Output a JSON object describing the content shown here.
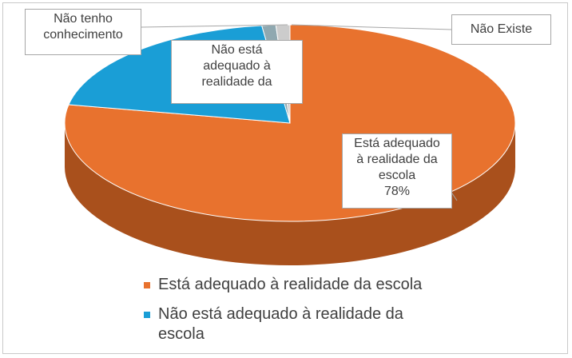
{
  "chart_data": {
    "type": "pie",
    "style": "3d",
    "slices": [
      {
        "name": "Está adequado à realidade da escola",
        "value": 78,
        "color": "#e8722e",
        "side_color": "#a9501c"
      },
      {
        "name": "Não está adequado à realidade da escola",
        "value": 20,
        "color": "#1a9ed6",
        "side_color": "#0f6f99"
      },
      {
        "name": "Não tenho conhecimento",
        "value": 1,
        "color": "#8fa8b0",
        "side_color": "#5f7880"
      },
      {
        "name": "Não Existe",
        "value": 1,
        "color": "#cccccc",
        "side_color": "#999999"
      }
    ],
    "data_labels": [
      {
        "slice": 0,
        "text": "Está adequado\nà realidade da\nescola\n78%"
      },
      {
        "slice": 1,
        "text": "Não está\nadequado à\nrealidade da"
      },
      {
        "slice": 2,
        "text": "Não tenho\nconhecimento"
      },
      {
        "slice": 3,
        "text": "Não Existe"
      }
    ],
    "legend": {
      "placement": "bottom",
      "entries": [
        {
          "label": "Está adequado à realidade da escola",
          "color": "#e8722e"
        },
        {
          "label": "Não está adequado à realidade da escola",
          "color": "#1a9ed6"
        }
      ]
    }
  }
}
